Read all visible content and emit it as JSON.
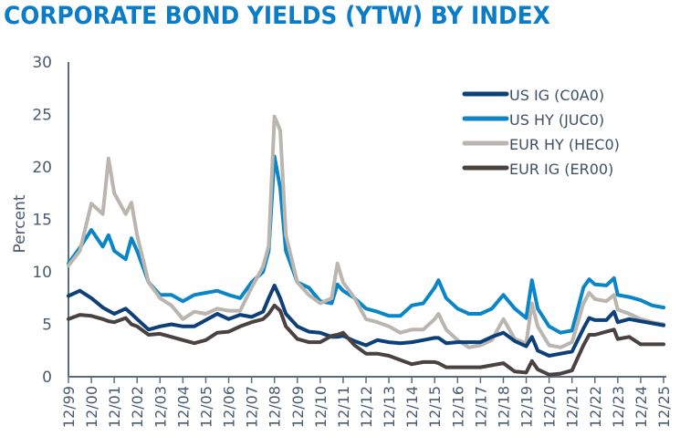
{
  "chart_data": {
    "type": "line",
    "title": "CORPORATE BOND YIELDS (YTW) BY INDEX",
    "ylabel": "Percent",
    "xlabel": "",
    "ylim": [
      0,
      30
    ],
    "yticks": [
      0,
      5,
      10,
      15,
      20,
      25,
      30
    ],
    "xticks": [
      "12/99",
      "12/00",
      "12/01",
      "12/02",
      "12/03",
      "12/04",
      "12/05",
      "12/06",
      "12/07",
      "12/08",
      "12/09",
      "12/10",
      "12/11",
      "12/12",
      "12/13",
      "12/14",
      "12/15",
      "12/16",
      "12/17",
      "12/18",
      "12/19",
      "12/20",
      "12/21",
      "12/22",
      "12/23",
      "12/24",
      "12/25"
    ],
    "grid": false,
    "legend_position": "top-right",
    "x": [
      "1999-12",
      "2000-06",
      "2000-12",
      "2001-06",
      "2001-09",
      "2001-12",
      "2002-06",
      "2002-09",
      "2002-12",
      "2003-06",
      "2003-12",
      "2004-06",
      "2004-12",
      "2005-06",
      "2005-12",
      "2006-06",
      "2006-12",
      "2007-06",
      "2007-12",
      "2008-06",
      "2008-09",
      "2008-12",
      "2009-03",
      "2009-06",
      "2009-12",
      "2010-06",
      "2010-12",
      "2011-06",
      "2011-09",
      "2011-12",
      "2012-06",
      "2012-12",
      "2013-06",
      "2013-12",
      "2014-06",
      "2014-12",
      "2015-06",
      "2015-12",
      "2016-02",
      "2016-06",
      "2016-12",
      "2017-06",
      "2017-12",
      "2018-06",
      "2018-12",
      "2019-06",
      "2019-12",
      "2020-03",
      "2020-06",
      "2020-12",
      "2021-06",
      "2021-12",
      "2022-06",
      "2022-09",
      "2022-12",
      "2023-06",
      "2023-10",
      "2023-12",
      "2024-06",
      "2024-12",
      "2025-06",
      "2025-12"
    ],
    "series": [
      {
        "name": "US IG (C0A0)",
        "color": "#0d3f78",
        "values": [
          7.7,
          8.2,
          7.5,
          6.6,
          6.3,
          6.0,
          6.5,
          6.0,
          5.5,
          4.5,
          4.8,
          5.0,
          4.8,
          4.8,
          5.4,
          6.0,
          5.5,
          5.9,
          5.7,
          6.2,
          7.5,
          8.7,
          7.5,
          6.0,
          4.8,
          4.3,
          4.2,
          3.8,
          3.8,
          3.9,
          3.4,
          3.0,
          3.5,
          3.3,
          3.2,
          3.3,
          3.5,
          3.7,
          3.7,
          3.2,
          3.3,
          3.3,
          3.3,
          3.8,
          4.2,
          3.4,
          2.9,
          3.8,
          2.5,
          2.0,
          2.2,
          2.4,
          4.6,
          5.6,
          5.4,
          5.4,
          6.2,
          5.2,
          5.5,
          5.3,
          5.1,
          4.9
        ]
      },
      {
        "name": "US HY (JUC0)",
        "color": "#0a86c8",
        "values": [
          10.8,
          12.3,
          14.0,
          12.4,
          13.5,
          12.0,
          11.2,
          13.2,
          12.0,
          9.0,
          7.8,
          7.8,
          7.2,
          7.8,
          8.0,
          8.2,
          7.8,
          7.5,
          9.0,
          10.0,
          12.0,
          21.0,
          18.0,
          12.0,
          9.0,
          8.5,
          7.2,
          7.0,
          8.8,
          8.2,
          7.5,
          6.5,
          6.2,
          5.8,
          5.8,
          6.8,
          7.0,
          8.5,
          9.2,
          7.5,
          6.5,
          6.0,
          6.0,
          6.5,
          7.8,
          6.5,
          5.6,
          9.2,
          6.5,
          4.8,
          4.2,
          4.4,
          8.5,
          9.3,
          8.8,
          8.7,
          9.4,
          7.8,
          7.6,
          7.3,
          6.8,
          6.6
        ]
      },
      {
        "name": "EUR HY (HEC0)",
        "color": "#bab6af",
        "values": [
          10.6,
          12.0,
          16.5,
          15.5,
          20.8,
          17.5,
          15.5,
          16.6,
          13.5,
          9.0,
          7.5,
          6.8,
          5.5,
          6.2,
          6.0,
          6.5,
          6.3,
          6.3,
          8.5,
          10.5,
          12.5,
          24.8,
          23.5,
          13.5,
          9.0,
          7.8,
          7.0,
          7.5,
          10.8,
          9.0,
          7.5,
          5.5,
          5.2,
          4.8,
          4.2,
          4.5,
          4.5,
          5.5,
          6.0,
          4.5,
          3.5,
          2.8,
          3.0,
          3.5,
          5.5,
          3.6,
          3.2,
          7.0,
          4.8,
          3.0,
          2.8,
          3.3,
          7.0,
          8.0,
          7.4,
          7.2,
          7.8,
          6.4,
          6.0,
          5.5,
          5.2,
          5.0
        ]
      },
      {
        "name": "EUR IG (ER00)",
        "color": "#4a4240",
        "values": [
          5.5,
          5.9,
          5.8,
          5.5,
          5.3,
          5.2,
          5.6,
          5.0,
          4.8,
          4.0,
          4.1,
          3.8,
          3.5,
          3.2,
          3.5,
          4.2,
          4.3,
          4.8,
          5.2,
          5.5,
          6.0,
          6.8,
          6.3,
          4.8,
          3.6,
          3.3,
          3.3,
          3.9,
          4.0,
          4.2,
          3.0,
          2.2,
          2.2,
          2.0,
          1.6,
          1.2,
          1.4,
          1.4,
          1.3,
          0.9,
          0.9,
          0.9,
          0.9,
          1.1,
          1.3,
          0.5,
          0.4,
          1.5,
          0.7,
          0.2,
          0.3,
          0.6,
          3.0,
          4.0,
          4.0,
          4.3,
          4.5,
          3.6,
          3.8,
          3.1,
          3.1,
          3.1
        ]
      }
    ]
  }
}
